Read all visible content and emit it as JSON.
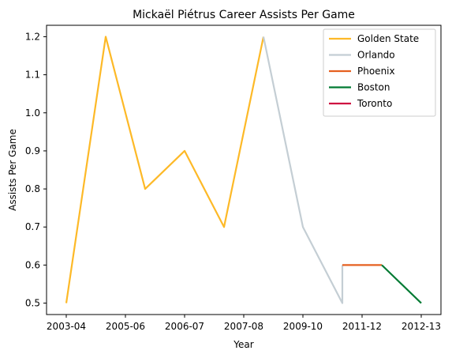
{
  "chart_data": {
    "type": "line",
    "title": "Mickaël Piétrus Career Assists Per Game",
    "xlabel": "Year",
    "ylabel": "Assists Per Game",
    "ylim": [
      0.47,
      1.23
    ],
    "x_ticks": [
      "2003-04",
      "2005-06",
      "2006-07",
      "2007-08",
      "2009-10",
      "2011-12",
      "2012-13"
    ],
    "y_ticks": [
      "0.5",
      "0.6",
      "0.7",
      "0.8",
      "0.9",
      "1.0",
      "1.1",
      "1.2"
    ],
    "grid": false,
    "legend_position": "top-right",
    "series": [
      {
        "name": "Golden State",
        "color": "#FDB927",
        "points": [
          {
            "x": 0,
            "y": 0.5
          },
          {
            "x": 1,
            "y": 1.2
          },
          {
            "x": 2,
            "y": 0.8
          },
          {
            "x": 3,
            "y": 0.9
          },
          {
            "x": 4,
            "y": 0.7
          },
          {
            "x": 5,
            "y": 1.2
          }
        ]
      },
      {
        "name": "Orlando",
        "color": "#C4CED4",
        "points": [
          {
            "x": 5,
            "y": 1.2
          },
          {
            "x": 6,
            "y": 0.7
          },
          {
            "x": 7,
            "y": 0.5
          },
          {
            "x": 7,
            "y": 0.6
          }
        ]
      },
      {
        "name": "Phoenix",
        "color": "#E56020",
        "points": [
          {
            "x": 7,
            "y": 0.6
          },
          {
            "x": 8,
            "y": 0.6
          }
        ]
      },
      {
        "name": "Boston",
        "color": "#007A33",
        "points": [
          {
            "x": 8,
            "y": 0.6
          },
          {
            "x": 9,
            "y": 0.5
          }
        ]
      },
      {
        "name": "Toronto",
        "color": "#CE1141",
        "points": []
      }
    ]
  }
}
